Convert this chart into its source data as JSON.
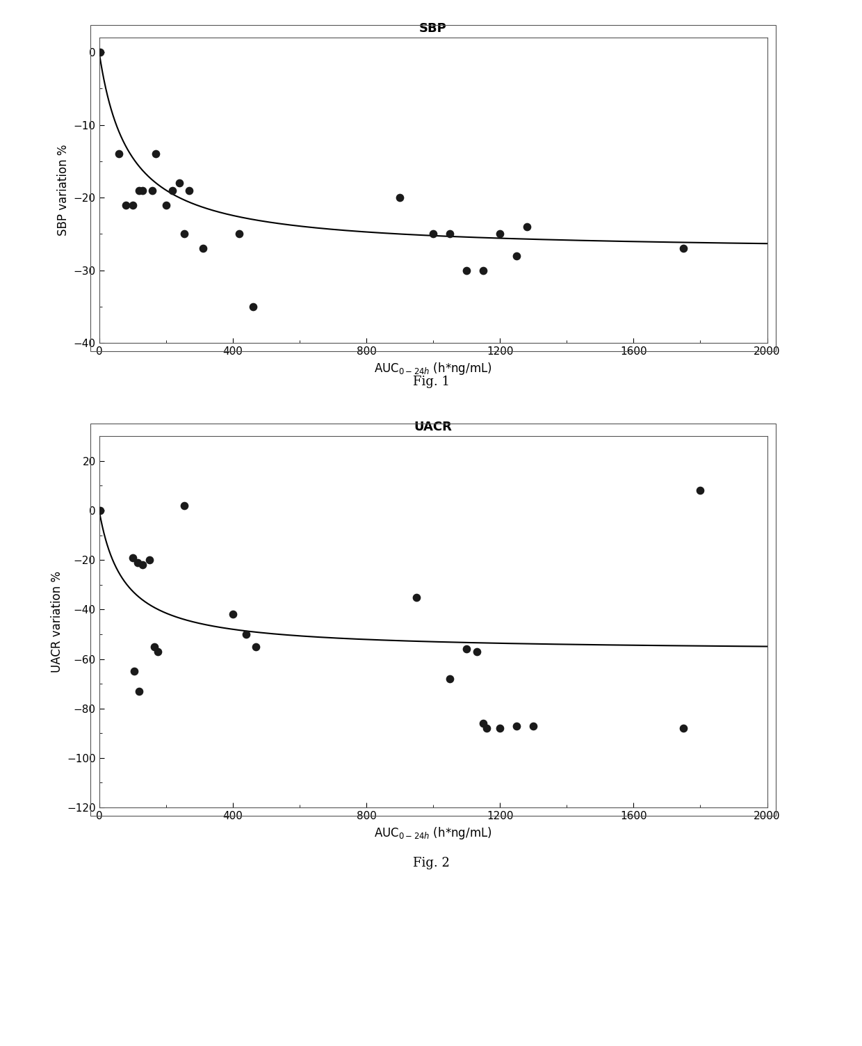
{
  "fig1_title": "SBP",
  "fig1_xlabel": "AUC$_{0-24h}$ (h*ng/mL)",
  "fig1_ylabel": "SBP variation %",
  "fig1_xlim": [
    0,
    2000
  ],
  "fig1_ylim": [
    -40,
    2
  ],
  "fig1_xticks": [
    0,
    400,
    800,
    1200,
    1600,
    2000
  ],
  "fig1_yticks": [
    0,
    -10,
    -20,
    -30,
    -40
  ],
  "fig1_scatter_x": [
    3,
    60,
    80,
    100,
    120,
    130,
    160,
    170,
    200,
    220,
    240,
    255,
    270,
    310,
    420,
    460,
    900,
    1000,
    1050,
    1100,
    1150,
    1200,
    1250,
    1280,
    1750
  ],
  "fig1_scatter_y": [
    0,
    -14,
    -21,
    -21,
    -19,
    -19,
    -19,
    -14,
    -21,
    -19,
    -18,
    -25,
    -19,
    -27,
    -25,
    -35,
    -20,
    -25,
    -25,
    -30,
    -30,
    -25,
    -28,
    -24,
    -27
  ],
  "fig1_curve_Emax": -27.5,
  "fig1_curve_EC50": 90,
  "fig2_title": "UACR",
  "fig2_xlabel": "AUC$_{0-24h}$ (h*ng/mL)",
  "fig2_ylabel": "UACR variation %",
  "fig2_xlim": [
    0,
    2000
  ],
  "fig2_ylim": [
    -120,
    30
  ],
  "fig2_xticks": [
    0,
    400,
    800,
    1200,
    1600,
    2000
  ],
  "fig2_yticks": [
    20,
    0,
    -20,
    -40,
    -60,
    -80,
    -100,
    -120
  ],
  "fig2_scatter_x": [
    3,
    255,
    100,
    115,
    130,
    150,
    165,
    175,
    105,
    120,
    400,
    440,
    470,
    950,
    1050,
    1100,
    1130,
    1150,
    1160,
    1200,
    1250,
    1300,
    1750,
    1800
  ],
  "fig2_scatter_y": [
    0,
    2,
    -19,
    -21,
    -22,
    -20,
    -55,
    -57,
    -65,
    -73,
    -42,
    -50,
    -55,
    -35,
    -68,
    -56,
    -57,
    -86,
    -88,
    -88,
    -87,
    -87,
    -88,
    8
  ],
  "fig2_curve_Emax": -57,
  "fig2_curve_EC50": 75,
  "fig1_caption": "Fig. 1",
  "fig2_caption": "Fig. 2",
  "line_color": "#000000",
  "scatter_color": "#1a1a1a",
  "bg_color": "#ffffff",
  "title_fontsize": 13,
  "label_fontsize": 12,
  "tick_fontsize": 11,
  "caption_fontsize": 13,
  "scatter_size": 55,
  "line_width": 1.5
}
